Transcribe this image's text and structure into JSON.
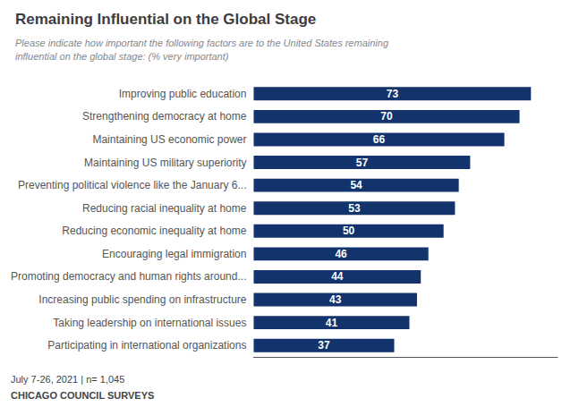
{
  "chart_data": {
    "type": "bar",
    "orientation": "horizontal",
    "title": "Remaining Influential on the Global Stage",
    "subtitle": "Please indicate how important the following factors are to the United States remaining\ninfluential on the global stage: (% very important)",
    "annotations": [
      "July 7-26, 2021 | n= 1,045",
      "CHICAGO COUNCIL SURVEYS"
    ],
    "categories": [
      "Improving public education",
      "Strengthening democracy at home",
      "Maintaining US economic power",
      "Maintaining US military superiority",
      "Preventing political violence like the January 6...",
      "Reducing racial inequality at home",
      "Reducing economic inequality at home",
      "Encouraging legal immigration",
      "Promoting democracy and human rights around...",
      "Increasing public spending on infrastructure",
      "Taking leadership on international issues",
      "Participating in international organizations"
    ],
    "values": [
      73,
      70,
      66,
      57,
      54,
      53,
      50,
      46,
      44,
      43,
      41,
      37
    ],
    "color": "#12336b",
    "xlim": [
      0,
      80
    ],
    "data_labels": true,
    "tick_labels": "y",
    "grid": false
  }
}
